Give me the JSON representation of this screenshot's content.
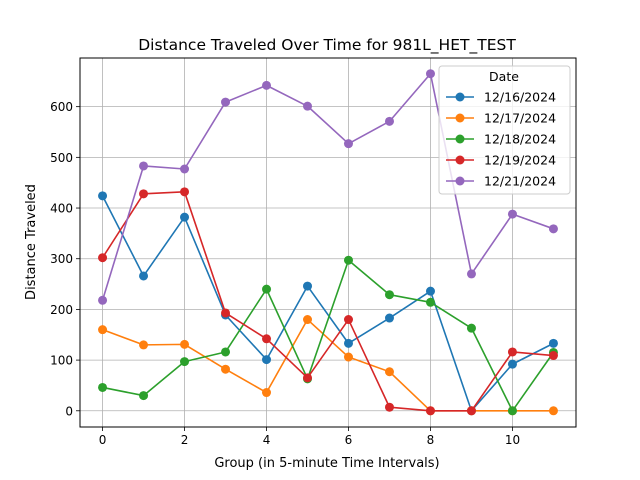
{
  "chart_data": {
    "type": "line",
    "title": "Distance Traveled Over Time for 981L_HET_TEST",
    "xlabel": "Group (in 5-minute Time Intervals)",
    "ylabel": "Distance Traveled",
    "x": [
      0,
      1,
      2,
      3,
      4,
      5,
      6,
      7,
      8,
      9,
      10,
      11
    ],
    "xlim": [
      -0.55,
      11.55
    ],
    "ylim": [
      -32,
      696
    ],
    "xticks": [
      0,
      2,
      4,
      6,
      8,
      10
    ],
    "yticks": [
      0,
      100,
      200,
      300,
      400,
      500,
      600
    ],
    "grid": true,
    "legend": {
      "title": "Date",
      "placement": "upper right"
    },
    "series": [
      {
        "name": "12/16/2024",
        "color": "#1f77b4",
        "values": [
          424,
          266,
          382,
          189,
          101,
          246,
          133,
          183,
          236,
          0,
          92,
          133
        ]
      },
      {
        "name": "12/17/2024",
        "color": "#ff7f0e",
        "values": [
          160,
          130,
          131,
          82,
          36,
          180,
          106,
          77,
          0,
          0,
          0,
          0
        ]
      },
      {
        "name": "12/18/2024",
        "color": "#2ca02c",
        "values": [
          46,
          30,
          97,
          116,
          240,
          63,
          297,
          229,
          214,
          163,
          0,
          115
        ]
      },
      {
        "name": "12/19/2024",
        "color": "#d62728",
        "values": [
          302,
          428,
          432,
          193,
          142,
          65,
          180,
          7,
          0,
          0,
          116,
          109
        ]
      },
      {
        "name": "12/21/2024",
        "color": "#9467bd",
        "values": [
          218,
          483,
          477,
          609,
          642,
          601,
          527,
          571,
          665,
          270,
          388,
          359
        ]
      }
    ]
  }
}
